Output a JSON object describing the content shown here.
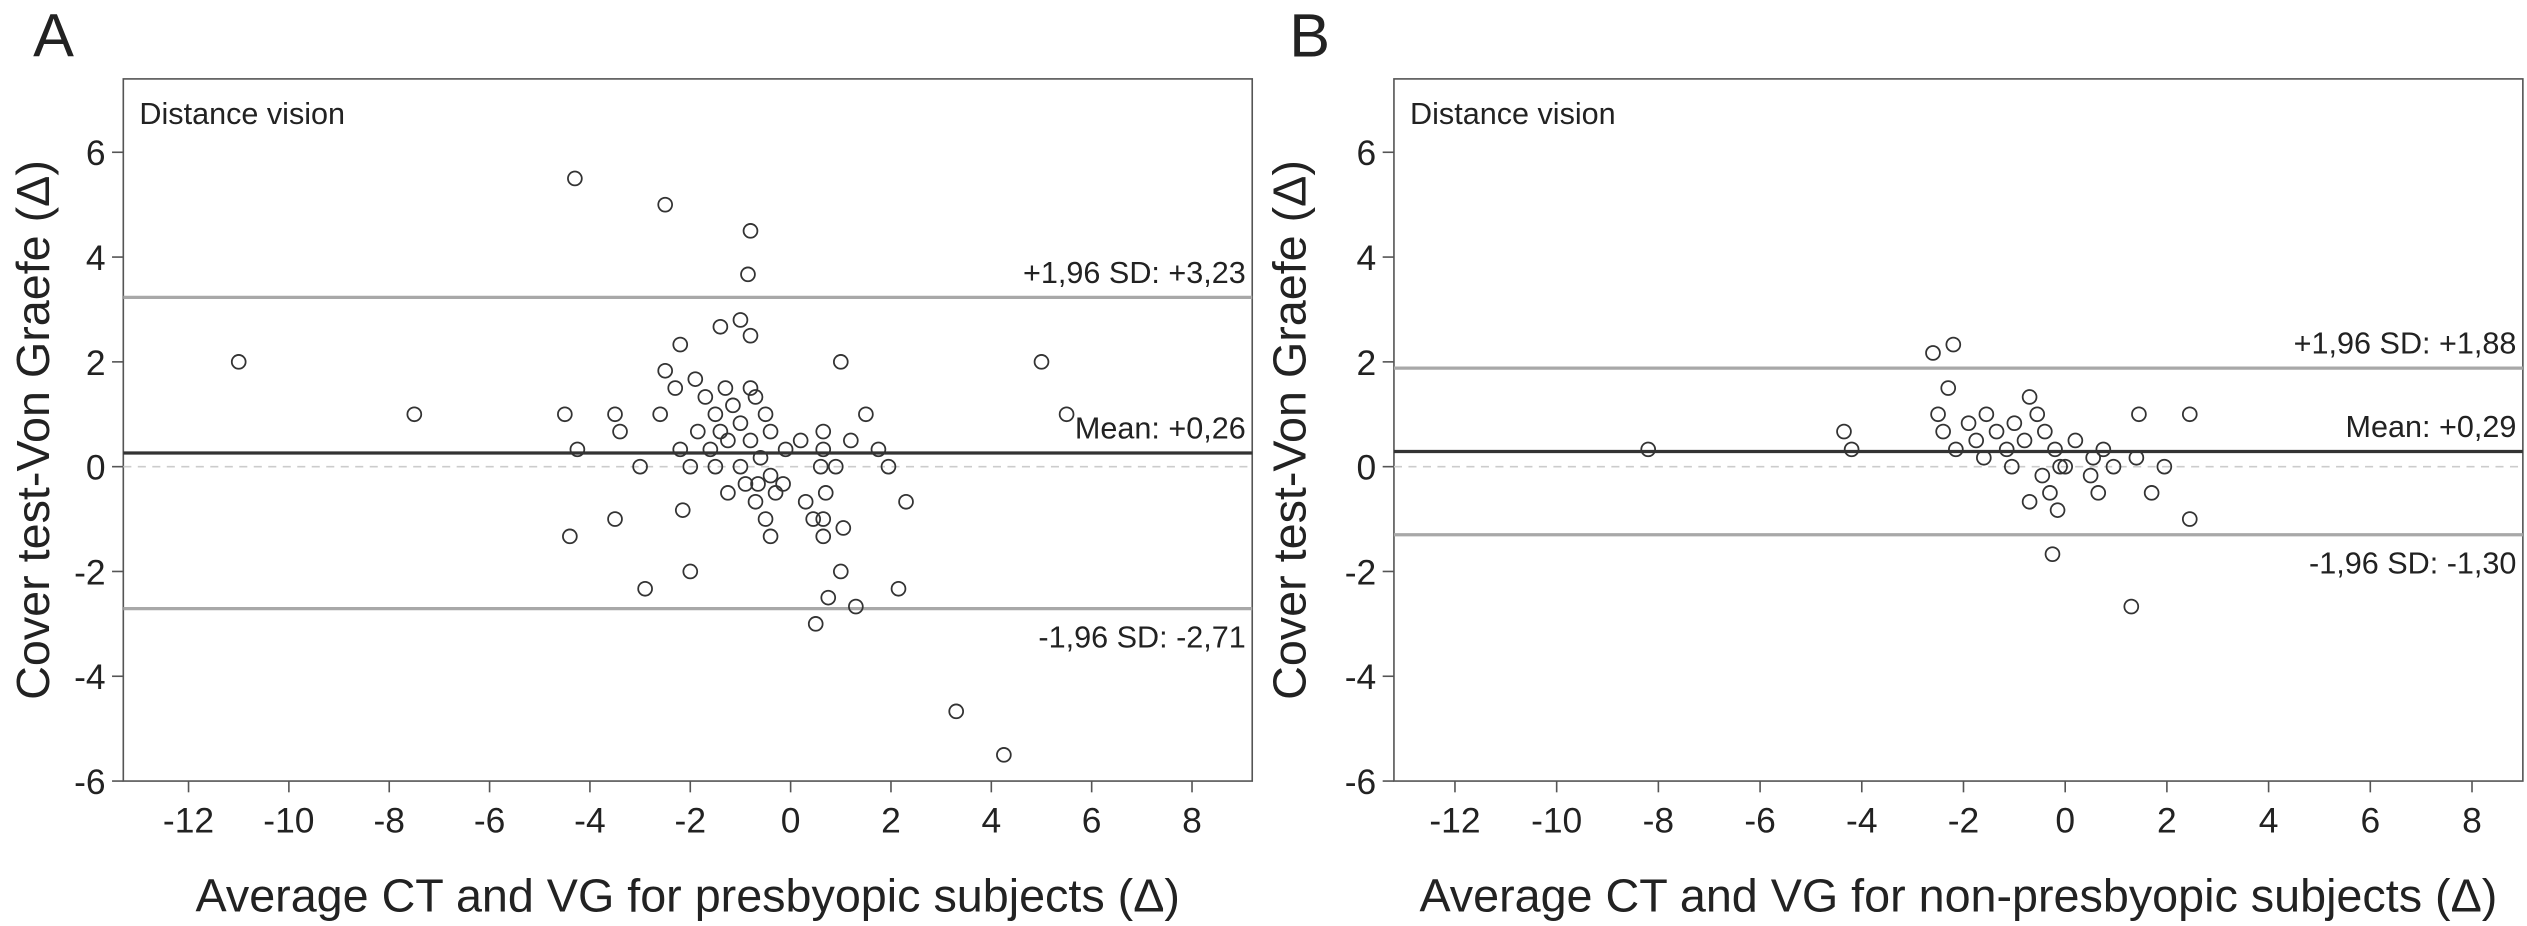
{
  "chart_data": [
    {
      "type": "scatter",
      "title": "A",
      "subtitle": "Distance vision",
      "xlabel": "Average CT and VG for presbyopic subjects (Δ)",
      "ylabel": "Cover test-Von Graefe (Δ)",
      "x": [
        -11,
        -7.5,
        -4.3,
        -2.5,
        -0.8,
        -0.85,
        -1,
        -0.8,
        -1.4,
        -2.2,
        -2.5,
        -2.3,
        -1.9,
        -1.7,
        -1.3,
        -0.8,
        -0.7,
        -1.15,
        -1.5,
        -0.5,
        -4.5,
        -3.5,
        -3.4,
        -4.25,
        -2.6,
        -2.2,
        -1.85,
        -1.6,
        -1.4,
        -1,
        -0.8,
        -0.4,
        -0.1,
        0.2,
        -3,
        -2,
        -1,
        -0.6,
        -1.25,
        -1.5,
        -0.65,
        -0.4,
        -0.15,
        -0.9,
        -1.25,
        -0.3,
        -0.7,
        -0.5,
        -0.4,
        0.3,
        0.45,
        0.6,
        0.65,
        0.65,
        0.9,
        1,
        1.2,
        1.5,
        1.75,
        1.95,
        0.7,
        0.65,
        1.05,
        0.65,
        1,
        0.75,
        1.3,
        2.15,
        2.3,
        0.5,
        -2.15,
        -2,
        -2.9,
        -3.5,
        -4.4,
        3.3,
        4.25,
        5,
        5.5
      ],
      "values": [
        2,
        1,
        5.5,
        5,
        4.5,
        3.67,
        2.8,
        2.5,
        2.67,
        2.33,
        1.83,
        1.5,
        1.67,
        1.33,
        1.5,
        1.5,
        1.33,
        1.17,
        1,
        1,
        1,
        1,
        0.67,
        0.33,
        1,
        0.33,
        0.67,
        0.33,
        0.67,
        0.83,
        0.5,
        0.67,
        0.33,
        0.5,
        0,
        0,
        0,
        0.17,
        0.5,
        0,
        -0.33,
        -0.17,
        -0.33,
        -0.33,
        -0.5,
        -0.5,
        -0.67,
        -1,
        -1.33,
        -0.67,
        -1,
        0,
        -1,
        0.33,
        0,
        2,
        0.5,
        1,
        0.33,
        0,
        -0.5,
        0.67,
        -1.17,
        -1.33,
        -2,
        -2.5,
        -2.67,
        -2.33,
        -0.67,
        -3,
        -0.83,
        -2,
        -2.33,
        -1,
        -1.33,
        -4.67,
        -5.5,
        2,
        1
      ],
      "xlim": [
        -13.3,
        9.2
      ],
      "ylim": [
        -6,
        7.4
      ],
      "xticks": [
        -12,
        -10,
        -8,
        -6,
        -4,
        -2,
        0,
        2,
        4,
        6,
        8
      ],
      "yticks": [
        -6,
        -4,
        -2,
        0,
        2,
        4,
        6
      ],
      "lines": [
        {
          "value": 3.23,
          "label": "+1,96 SD: +3,23",
          "color": "#a8a8a8",
          "label_position": "above"
        },
        {
          "value": 0.26,
          "label": "Mean: +0,26",
          "color": "#333333",
          "label_position": "above"
        },
        {
          "value": -2.71,
          "label": "-1,96 SD: -2,71",
          "color": "#a8a8a8",
          "label_position": "below"
        },
        {
          "value": 0,
          "color": "#cccccc",
          "style": "dashed"
        }
      ]
    },
    {
      "type": "scatter",
      "title": "B",
      "subtitle": "Distance vision",
      "xlabel": "Average CT and VG for non-presbyopic subjects (Δ)",
      "ylabel": "Cover test-Von Graefe (Δ)",
      "x": [
        -8.2,
        -4.35,
        -4.2,
        -2.6,
        -2.2,
        -2.3,
        -2.5,
        -2.4,
        -2.15,
        -1.9,
        -1.75,
        -1.6,
        -1.55,
        -1.35,
        -1.15,
        -1,
        -1.05,
        -0.8,
        -0.7,
        -0.55,
        -0.4,
        -0.45,
        -0.7,
        -0.3,
        -0.2,
        -0.1,
        -0.15,
        -0.25,
        0.2,
        0.55,
        0.5,
        0.65,
        0.75,
        0.95,
        1.45,
        1.4,
        1.7,
        1.95,
        1.3,
        2.45,
        2.45,
        0
      ],
      "values": [
        0.33,
        0.67,
        0.33,
        2.17,
        2.33,
        1.5,
        1,
        0.67,
        0.33,
        0.83,
        0.5,
        0.17,
        1,
        0.67,
        0.33,
        0.83,
        0,
        0.5,
        1.33,
        1,
        0.67,
        -0.17,
        -0.67,
        -0.5,
        0.33,
        0,
        -0.83,
        -1.67,
        0.5,
        0.17,
        -0.17,
        -0.5,
        0.33,
        0,
        1,
        0.17,
        -0.5,
        0,
        -2.67,
        1,
        -1,
        0
      ],
      "xlim": [
        -13.2,
        9.0
      ],
      "ylim": [
        -6,
        7.4
      ],
      "xticks": [
        -12,
        -10,
        -8,
        -6,
        -4,
        -2,
        0,
        2,
        4,
        6,
        8
      ],
      "yticks": [
        -6,
        -4,
        -2,
        0,
        2,
        4,
        6
      ],
      "lines": [
        {
          "value": 1.88,
          "label": "+1,96 SD: +1,88",
          "color": "#a8a8a8",
          "label_position": "above"
        },
        {
          "value": 0.29,
          "label": "Mean: +0,29",
          "color": "#333333",
          "label_position": "above"
        },
        {
          "value": -1.3,
          "label": "-1,96 SD: -1,30",
          "color": "#a8a8a8",
          "label_position": "below"
        },
        {
          "value": 0,
          "color": "#cccccc",
          "style": "dashed"
        }
      ]
    }
  ]
}
